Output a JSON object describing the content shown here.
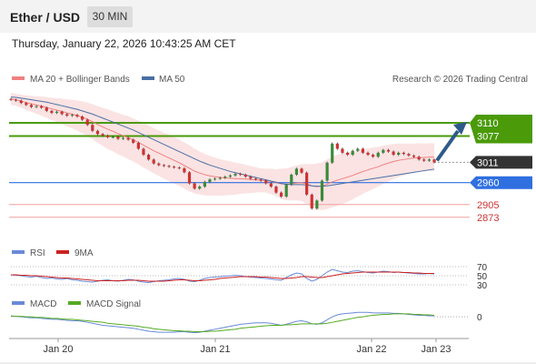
{
  "header": {
    "title": "Ether / USD",
    "timeframe": "30 MIN"
  },
  "datetime": "Thursday, January 22, 2026 10:43:25 AM CET",
  "legend": {
    "ma20": "MA 20 + Bollinger Bands",
    "ma50": "MA 50",
    "copyright": "Research © 2026 Trading Central",
    "rsi": "RSI",
    "rsi_ma": "9MA",
    "macd": "MACD",
    "macd_signal": "MACD Signal"
  },
  "colors": {
    "ma20": "#f08080",
    "ma50": "#4a6fa5",
    "band": "#fadcdc",
    "resistance": "#4a9a0a",
    "support": "#2f6fe0",
    "pivot_low": "#f2a0a0",
    "current": "#333333",
    "arrow": "#2e5a8a",
    "rsi": "#6a8ad8",
    "rsi_ma": "#cc2222",
    "macd": "#6a8ad8",
    "macd_signal": "#55aa22",
    "candle_up": "#3a8a3a",
    "candle_down": "#cc3333"
  },
  "chart_data": [
    {
      "type": "candlestick",
      "name": "price",
      "ylim": [
        2820,
        3190
      ],
      "close": [
        3168,
        3166,
        3160,
        3155,
        3150,
        3152,
        3148,
        3140,
        3135,
        3138,
        3132,
        3128,
        3130,
        3126,
        3118,
        3105,
        3090,
        3082,
        3078,
        3074,
        3075,
        3070,
        3072,
        3068,
        3060,
        3045,
        3030,
        3018,
        3008,
        3004,
        3002,
        3000,
        2998,
        2996,
        2986,
        2958,
        2945,
        2950,
        2962,
        2968,
        2970,
        2972,
        2975,
        2978,
        2982,
        2980,
        2975,
        2970,
        2968,
        2965,
        2958,
        2950,
        2935,
        2925,
        2955,
        2980,
        2995,
        2985,
        2930,
        2895,
        2915,
        2965,
        3010,
        3058,
        3045,
        3035,
        3030,
        3040,
        3045,
        3035,
        3030,
        3025,
        3035,
        3042,
        3038,
        3030,
        3035,
        3032,
        3028,
        3025,
        3018,
        3015,
        3018,
        3011
      ],
      "open": [
        3170,
        3168,
        3166,
        3160,
        3155,
        3150,
        3152,
        3148,
        3140,
        3135,
        3138,
        3132,
        3128,
        3130,
        3126,
        3118,
        3105,
        3090,
        3082,
        3078,
        3074,
        3075,
        3070,
        3072,
        3068,
        3060,
        3045,
        3030,
        3018,
        3008,
        3004,
        3002,
        3000,
        2998,
        2996,
        2986,
        2958,
        2945,
        2950,
        2962,
        2968,
        2970,
        2972,
        2975,
        2978,
        2982,
        2980,
        2975,
        2970,
        2968,
        2965,
        2958,
        2950,
        2935,
        2925,
        2955,
        2980,
        2995,
        2985,
        2930,
        2895,
        2915,
        2965,
        3010,
        3058,
        3045,
        3035,
        3030,
        3040,
        3045,
        3035,
        3030,
        3025,
        3035,
        3042,
        3038,
        3030,
        3035,
        3032,
        3028,
        3025,
        3018,
        3015,
        3018
      ],
      "ma20": [
        3170,
        3168,
        3165,
        3161,
        3158,
        3155,
        3152,
        3149,
        3145,
        3142,
        3139,
        3135,
        3132,
        3128,
        3124,
        3119,
        3113,
        3106,
        3100,
        3094,
        3089,
        3083,
        3078,
        3073,
        3067,
        3061,
        3054,
        3047,
        3040,
        3034,
        3028,
        3022,
        3016,
        3010,
        3003,
        2996,
        2989,
        2984,
        2980,
        2977,
        2975,
        2973,
        2972,
        2971,
        2970,
        2970,
        2969,
        2968,
        2967,
        2966,
        2965,
        2963,
        2960,
        2957,
        2956,
        2957,
        2959,
        2960,
        2957,
        2952,
        2950,
        2951,
        2956,
        2962,
        2966,
        2970,
        2974,
        2978,
        2983,
        2988,
        2992,
        2996,
        3000,
        3005,
        3009,
        3013,
        3016,
        3018,
        3020,
        3022,
        3023,
        3023,
        3024,
        3024
      ],
      "ma50": [
        3175,
        3174,
        3172,
        3170,
        3168,
        3166,
        3164,
        3162,
        3159,
        3156,
        3153,
        3150,
        3147,
        3144,
        3140,
        3136,
        3132,
        3127,
        3122,
        3117,
        3112,
        3107,
        3102,
        3097,
        3092,
        3086,
        3080,
        3074,
        3068,
        3062,
        3056,
        3050,
        3044,
        3038,
        3032,
        3026,
        3020,
        3014,
        3009,
        3004,
        3000,
        2996,
        2992,
        2988,
        2985,
        2982,
        2979,
        2976,
        2973,
        2970,
        2967,
        2964,
        2961,
        2958,
        2956,
        2955,
        2955,
        2955,
        2954,
        2952,
        2951,
        2951,
        2952,
        2954,
        2956,
        2958,
        2960,
        2962,
        2964,
        2966,
        2968,
        2970,
        2972,
        2974,
        2976,
        2978,
        2980,
        2982,
        2984,
        2986,
        2988,
        2990,
        2992,
        2994
      ],
      "band_width": [
        15,
        15,
        16,
        18,
        20,
        22,
        24,
        26,
        28,
        30,
        32,
        34,
        36,
        38,
        40,
        42,
        44,
        46,
        48,
        50,
        50,
        52,
        52,
        54,
        54,
        55,
        56,
        56,
        57,
        57,
        58,
        58,
        58,
        58,
        58,
        58,
        56,
        54,
        52,
        50,
        48,
        46,
        44,
        42,
        40,
        38,
        36,
        34,
        32,
        30,
        30,
        32,
        34,
        38,
        40,
        42,
        44,
        46,
        50,
        54,
        58,
        60,
        62,
        64,
        64,
        64,
        62,
        60,
        58,
        56,
        54,
        52,
        50,
        48,
        46,
        44,
        42,
        40,
        38,
        36,
        36,
        35,
        35,
        35
      ],
      "resistance": [
        3110,
        3077
      ],
      "support": [
        2960
      ],
      "lows": [
        2905,
        2873
      ],
      "current": 3011,
      "x_labels": [
        "Jan 20",
        "Jan 21",
        "Jan 22",
        "Jan 23"
      ]
    },
    {
      "type": "line",
      "name": "RSI",
      "ylim": [
        20,
        80
      ],
      "levels": [
        70,
        50,
        30
      ],
      "level_labels": [
        "70",
        "50",
        "30"
      ],
      "series": [
        {
          "name": "RSI",
          "values": [
            52,
            51,
            50,
            48,
            47,
            49,
            46,
            44,
            45,
            43,
            42,
            44,
            41,
            40,
            38,
            37,
            36,
            38,
            40,
            41,
            39,
            38,
            40,
            42,
            41,
            38,
            36,
            35,
            37,
            39,
            40,
            41,
            43,
            44,
            42,
            38,
            37,
            40,
            44,
            46,
            47,
            48,
            49,
            50,
            51,
            50,
            48,
            47,
            46,
            45,
            44,
            43,
            41,
            40,
            46,
            52,
            56,
            54,
            44,
            38,
            42,
            50,
            58,
            64,
            61,
            58,
            57,
            60,
            61,
            59,
            57,
            56,
            58,
            60,
            59,
            57,
            58,
            57,
            56,
            55,
            54,
            54,
            55,
            54
          ]
        },
        {
          "name": "9MA",
          "values": [
            52,
            52,
            51,
            51,
            50,
            50,
            49,
            48,
            47,
            46,
            45,
            45,
            44,
            43,
            42,
            41,
            40,
            39,
            39,
            39,
            39,
            39,
            39,
            40,
            40,
            40,
            39,
            38,
            38,
            38,
            38,
            39,
            40,
            41,
            41,
            40,
            39,
            39,
            40,
            41,
            42,
            44,
            45,
            46,
            47,
            48,
            48,
            48,
            48,
            47,
            47,
            46,
            45,
            44,
            44,
            45,
            46,
            48,
            48,
            47,
            46,
            46,
            48,
            50,
            52,
            54,
            55,
            56,
            57,
            58,
            58,
            58,
            58,
            58,
            58,
            58,
            58,
            57,
            57,
            56,
            56,
            55,
            55,
            55
          ]
        }
      ]
    },
    {
      "type": "line",
      "name": "MACD",
      "ylim": [
        -40,
        15
      ],
      "zero_label": "0",
      "series": [
        {
          "name": "MACD",
          "values": [
            2,
            1,
            0,
            -1,
            -2,
            -2,
            -3,
            -4,
            -5,
            -5,
            -6,
            -7,
            -8,
            -8,
            -9,
            -11,
            -13,
            -15,
            -17,
            -18,
            -19,
            -20,
            -21,
            -22,
            -23,
            -25,
            -27,
            -29,
            -30,
            -31,
            -31,
            -31,
            -31,
            -30,
            -30,
            -31,
            -32,
            -31,
            -29,
            -27,
            -25,
            -23,
            -21,
            -19,
            -17,
            -15,
            -14,
            -13,
            -12,
            -12,
            -12,
            -13,
            -15,
            -17,
            -15,
            -12,
            -9,
            -8,
            -10,
            -14,
            -15,
            -12,
            -6,
            0,
            4,
            6,
            7,
            8,
            9,
            9,
            9,
            8,
            8,
            8,
            8,
            7,
            7,
            6,
            5,
            4,
            3,
            3,
            2,
            2
          ]
        },
        {
          "name": "MACD Signal",
          "values": [
            1,
            1,
            1,
            0,
            0,
            -1,
            -1,
            -2,
            -3,
            -3,
            -4,
            -5,
            -5,
            -6,
            -7,
            -8,
            -9,
            -10,
            -11,
            -13,
            -14,
            -15,
            -16,
            -17,
            -18,
            -19,
            -21,
            -22,
            -24,
            -25,
            -26,
            -27,
            -28,
            -28,
            -29,
            -29,
            -30,
            -30,
            -30,
            -29,
            -29,
            -28,
            -27,
            -26,
            -25,
            -23,
            -22,
            -21,
            -20,
            -19,
            -18,
            -17,
            -17,
            -17,
            -16,
            -16,
            -15,
            -14,
            -14,
            -14,
            -14,
            -14,
            -13,
            -11,
            -9,
            -7,
            -5,
            -3,
            -1,
            0,
            2,
            3,
            4,
            5,
            5,
            6,
            6,
            6,
            6,
            5,
            5,
            4,
            4,
            3
          ]
        }
      ]
    }
  ]
}
